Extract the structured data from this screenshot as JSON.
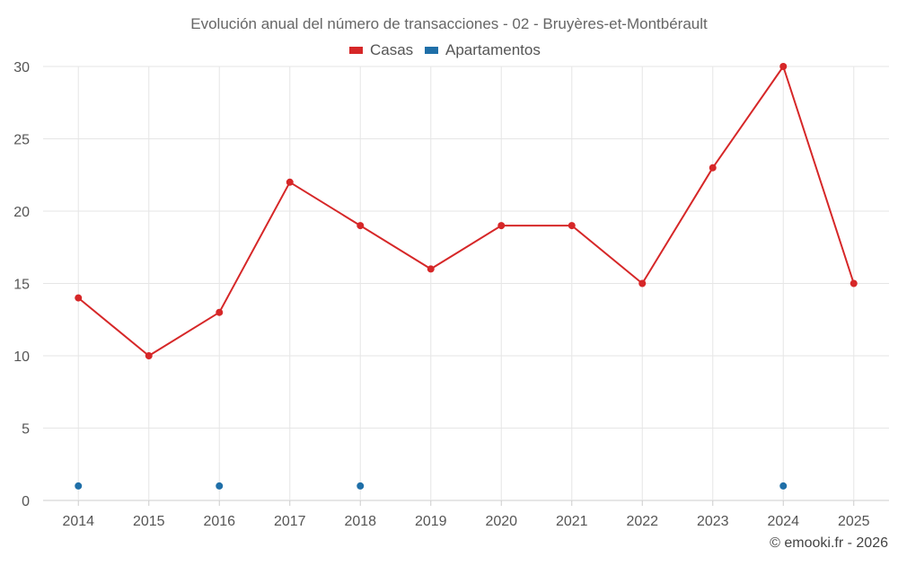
{
  "colors": {
    "casas": "#d62728",
    "apartamentos": "#1f6fa8",
    "grid": "#e6e6e6",
    "axis": "#cccccc"
  },
  "chart_data": {
    "type": "line",
    "title": "Evolución anual del número de transacciones - 02 - Bruyères-et-Montbérault",
    "categories": [
      "2014",
      "2015",
      "2016",
      "2017",
      "2018",
      "2019",
      "2020",
      "2021",
      "2022",
      "2023",
      "2024",
      "2025"
    ],
    "yticks": [
      "0",
      "5",
      "10",
      "15",
      "20",
      "25",
      "30"
    ],
    "ylim": [
      0,
      30
    ],
    "grid": true,
    "legend_position": "top-center",
    "series": [
      {
        "name": "Casas",
        "values": [
          14,
          10,
          13,
          22,
          19,
          16,
          19,
          19,
          15,
          23,
          30,
          15
        ],
        "line": true
      },
      {
        "name": "Apartamentos",
        "values": [
          1,
          null,
          1,
          null,
          1,
          null,
          null,
          null,
          null,
          null,
          1,
          null
        ],
        "line": false
      }
    ],
    "credit": "© emooki.fr - 2026"
  }
}
